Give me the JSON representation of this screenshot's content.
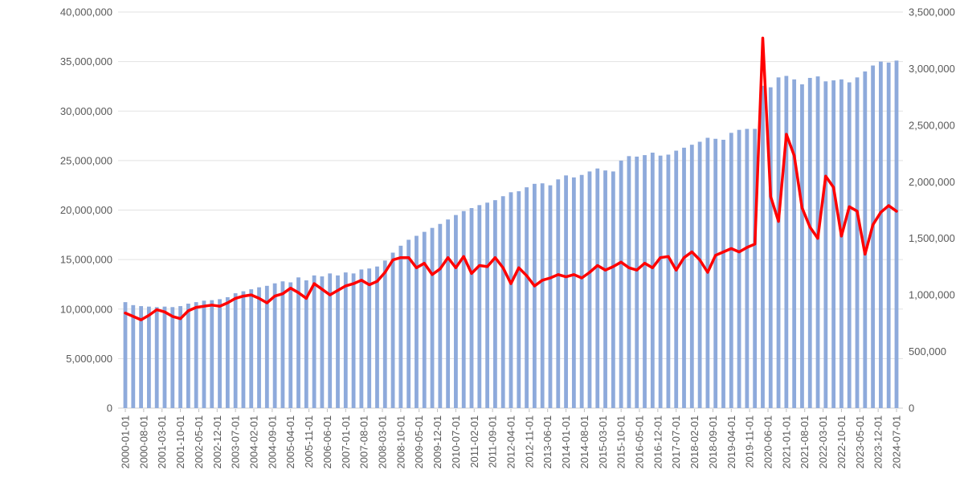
{
  "chart_data": {
    "type": "combo",
    "title": "",
    "grid": {
      "show": true,
      "color": "#E2E2E2",
      "baseline_color": "#CFCFCF"
    },
    "text_color": "#595959",
    "tick_mark_color": "#BFBFBF",
    "x_categories": [
      "2000-01-01",
      "2000-04-01",
      "2000-07-01",
      "2000-10-01",
      "2001-01-01",
      "2001-04-01",
      "2001-07-01",
      "2001-10-01",
      "2002-01-01",
      "2002-04-01",
      "2002-07-01",
      "2002-10-01",
      "2003-01-01",
      "2003-04-01",
      "2003-07-01",
      "2003-10-01",
      "2004-01-01",
      "2004-04-01",
      "2004-07-01",
      "2004-10-01",
      "2005-01-01",
      "2005-04-01",
      "2005-07-01",
      "2005-10-01",
      "2006-01-01",
      "2006-04-01",
      "2006-07-01",
      "2006-10-01",
      "2007-01-01",
      "2007-04-01",
      "2007-07-01",
      "2007-10-01",
      "2008-01-01",
      "2008-04-01",
      "2008-07-01",
      "2008-10-01",
      "2009-01-01",
      "2009-04-01",
      "2009-07-01",
      "2009-10-01",
      "2010-01-01",
      "2010-04-01",
      "2010-07-01",
      "2010-10-01",
      "2011-01-01",
      "2011-04-01",
      "2011-07-01",
      "2011-10-01",
      "2012-01-01",
      "2012-04-01",
      "2012-07-01",
      "2012-10-01",
      "2013-01-01",
      "2013-04-01",
      "2013-07-01",
      "2013-10-01",
      "2014-01-01",
      "2014-04-01",
      "2014-07-01",
      "2014-10-01",
      "2015-01-01",
      "2015-04-01",
      "2015-07-01",
      "2015-10-01",
      "2016-01-01",
      "2016-04-01",
      "2016-07-01",
      "2016-10-01",
      "2017-01-01",
      "2017-04-01",
      "2017-07-01",
      "2017-10-01",
      "2018-01-01",
      "2018-04-01",
      "2018-07-01",
      "2018-10-01",
      "2019-01-01",
      "2019-04-01",
      "2019-07-01",
      "2019-10-01",
      "2020-01-01",
      "2020-04-01",
      "2020-07-01",
      "2020-10-01",
      "2021-01-01",
      "2021-04-01",
      "2021-07-01",
      "2021-10-01",
      "2022-01-01",
      "2022-04-01",
      "2022-07-01",
      "2022-10-01",
      "2023-01-01",
      "2023-04-01",
      "2023-07-01",
      "2023-10-01",
      "2024-01-01",
      "2024-04-01",
      "2024-07-01"
    ],
    "series": [
      {
        "name": "bar-series",
        "type": "bar",
        "axis": "left",
        "color": "#8EAADB",
        "values": [
          10700000,
          10400000,
          10300000,
          10250000,
          10200000,
          10250000,
          10200000,
          10300000,
          10550000,
          10700000,
          10850000,
          10900000,
          11000000,
          11200000,
          11600000,
          11800000,
          12000000,
          12200000,
          12350000,
          12600000,
          12800000,
          12700000,
          13200000,
          12900000,
          13400000,
          13300000,
          13600000,
          13400000,
          13700000,
          13600000,
          14000000,
          14100000,
          14300000,
          14900000,
          15700000,
          16400000,
          17000000,
          17400000,
          17800000,
          18200000,
          18600000,
          19050000,
          19500000,
          19900000,
          20200000,
          20500000,
          20750000,
          21000000,
          21400000,
          21800000,
          21900000,
          22300000,
          22650000,
          22700000,
          22500000,
          23100000,
          23500000,
          23300000,
          23550000,
          23900000,
          24200000,
          24000000,
          23900000,
          25000000,
          25450000,
          25400000,
          25550000,
          25800000,
          25500000,
          25600000,
          26000000,
          26300000,
          26600000,
          26900000,
          27300000,
          27200000,
          27100000,
          27800000,
          28100000,
          28200000,
          28200000,
          32550000,
          32400000,
          33400000,
          33550000,
          33200000,
          32700000,
          33350000,
          33500000,
          33000000,
          33100000,
          33200000,
          32900000,
          33400000,
          34000000,
          34600000,
          35000000,
          34900000,
          35100000
        ]
      },
      {
        "name": "line-series",
        "type": "line",
        "axis": "right",
        "color": "#FF0000",
        "values": [
          840000,
          810000,
          780000,
          820000,
          870000,
          850000,
          810000,
          790000,
          860000,
          890000,
          900000,
          910000,
          900000,
          930000,
          970000,
          990000,
          1000000,
          970000,
          930000,
          990000,
          1010000,
          1060000,
          1020000,
          970000,
          1100000,
          1050000,
          1000000,
          1040000,
          1080000,
          1100000,
          1130000,
          1090000,
          1120000,
          1200000,
          1310000,
          1330000,
          1330000,
          1240000,
          1280000,
          1180000,
          1230000,
          1330000,
          1240000,
          1340000,
          1190000,
          1260000,
          1250000,
          1330000,
          1240000,
          1100000,
          1240000,
          1170000,
          1080000,
          1130000,
          1150000,
          1180000,
          1160000,
          1180000,
          1150000,
          1200000,
          1260000,
          1220000,
          1250000,
          1290000,
          1240000,
          1220000,
          1280000,
          1240000,
          1330000,
          1340000,
          1220000,
          1330000,
          1380000,
          1310000,
          1200000,
          1350000,
          1380000,
          1410000,
          1380000,
          1420000,
          1450000,
          3270000,
          1870000,
          1650000,
          2420000,
          2230000,
          1770000,
          1600000,
          1500000,
          2050000,
          1950000,
          1520000,
          1780000,
          1740000,
          1360000,
          1620000,
          1730000,
          1790000,
          1740000
        ]
      }
    ],
    "left_axis": {
      "min": 0,
      "max": 40000000,
      "step": 5000000,
      "tick_labels": [
        "0",
        "5,000,000",
        "10,000,000",
        "15,000,000",
        "20,000,000",
        "25,000,000",
        "30,000,000",
        "35,000,000",
        "40,000,000"
      ]
    },
    "right_axis": {
      "min": 0,
      "max": 3500000,
      "step": 500000,
      "tick_labels": [
        "0",
        "500,000",
        "1,000,000",
        "1,500,000",
        "2,000,000",
        "2,500,000",
        "3,000,000",
        "3,500,000"
      ]
    },
    "x_axis": {
      "tick_label_interval_months": 7,
      "tick_labels": [
        "2000-01-01",
        "2000-08-01",
        "2001-03-01",
        "2001-10-01",
        "2002-05-01",
        "2002-12-01",
        "2003-07-01",
        "2004-02-01",
        "2004-09-01",
        "2005-04-01",
        "2005-11-01",
        "2006-06-01",
        "2007-01-01",
        "2007-08-01",
        "2008-03-01",
        "2008-10-01",
        "2009-05-01",
        "2009-12-01",
        "2010-07-01",
        "2011-02-01",
        "2011-09-01",
        "2012-04-01",
        "2012-11-01",
        "2013-06-01",
        "2014-01-01",
        "2014-08-01",
        "2015-03-01",
        "2015-10-01",
        "2016-05-01",
        "2016-12-01",
        "2017-07-01",
        "2018-02-01",
        "2018-09-01",
        "2019-04-01",
        "2019-11-01",
        "2020-06-01",
        "2021-01-01",
        "2021-08-01",
        "2022-03-01",
        "2022-10-01",
        "2023-05-01",
        "2023-12-01",
        "2024-07-01"
      ]
    }
  }
}
